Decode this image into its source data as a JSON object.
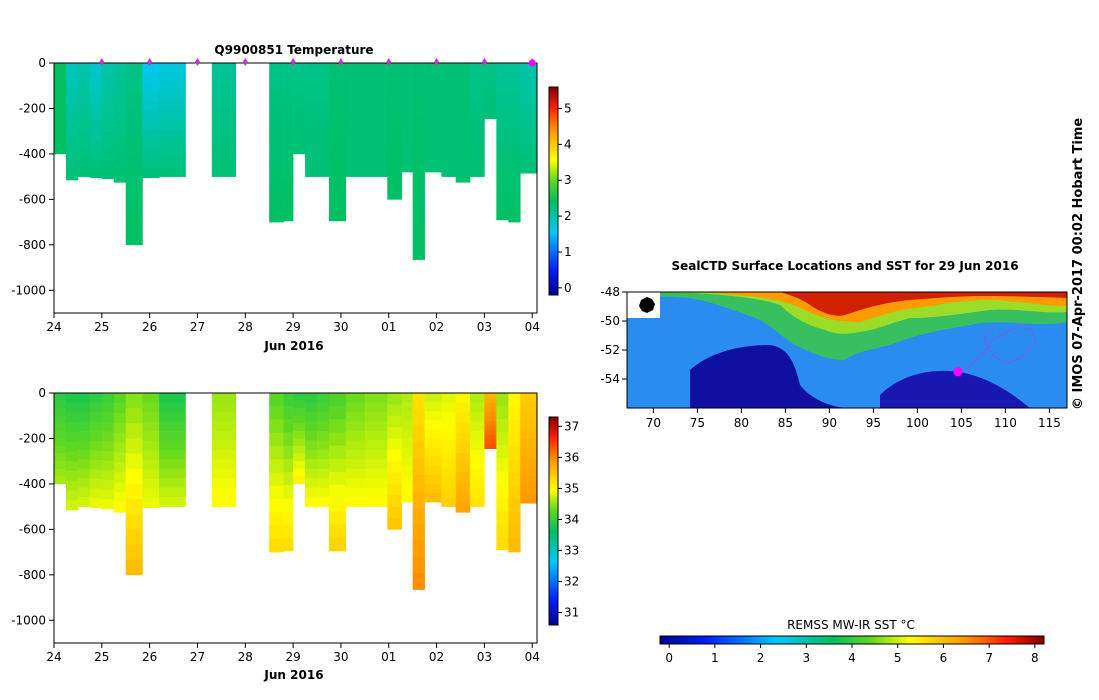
{
  "credit": "© IMOS 07-Apr-2017 00:02 Hobart Time",
  "colors": {
    "tag_marker": "#cc33cc",
    "seal_track": "#cc33cc",
    "current_position": "#ff00ff",
    "axis": "#000000"
  },
  "chart_data": [
    {
      "type": "heatmap",
      "title": "Q9900851  Temperature",
      "xlabel": "Jun 2016",
      "ylabel": "",
      "x_ticks": [
        "24",
        "25",
        "26",
        "27",
        "28",
        "29",
        "30",
        "01",
        "02",
        "03",
        "04"
      ],
      "y_ticks": [
        "0",
        "-200",
        "-400",
        "-600",
        "-800",
        "-1000"
      ],
      "ylim": [
        -1100,
        0
      ],
      "colorbar_ticks": [
        "0",
        "1",
        "2",
        "3",
        "4",
        "5"
      ],
      "colorbar_range": [
        -0.2,
        5.6
      ],
      "x_unit": "days since 24 Jun 2016",
      "profile_days": [
        1.0,
        2.0,
        3.0,
        4.0,
        5.0,
        6.0,
        7.0,
        8.0,
        9.0,
        10.0
      ],
      "profiles": [
        {
          "x0": 0.0,
          "x1": 0.25,
          "depth": -400,
          "surf": 2.4,
          "deep": 2.4
        },
        {
          "x0": 0.25,
          "x1": 0.5,
          "depth": -515,
          "surf": 1.9,
          "deep": 2.3
        },
        {
          "x0": 0.5,
          "x1": 0.75,
          "depth": -500,
          "surf": 2.0,
          "deep": 2.3
        },
        {
          "x0": 0.75,
          "x1": 1.0,
          "depth": -505,
          "surf": 1.8,
          "deep": 2.3
        },
        {
          "x0": 1.0,
          "x1": 1.25,
          "depth": -510,
          "surf": 2.0,
          "deep": 2.3
        },
        {
          "x0": 1.25,
          "x1": 1.5,
          "depth": -525,
          "surf": 2.1,
          "deep": 2.3
        },
        {
          "x0": 1.5,
          "x1": 1.85,
          "depth": -800,
          "surf": 2.2,
          "deep": 2.4
        },
        {
          "x0": 1.85,
          "x1": 2.2,
          "depth": -505,
          "surf": 1.6,
          "deep": 2.3
        },
        {
          "x0": 2.2,
          "x1": 2.75,
          "depth": -500,
          "surf": 1.7,
          "deep": 2.3
        },
        {
          "x0": 3.3,
          "x1": 3.8,
          "depth": -500,
          "surf": 2.1,
          "deep": 2.3
        },
        {
          "x0": 4.5,
          "x1": 4.8,
          "depth": -700,
          "surf": 2.2,
          "deep": 2.4
        },
        {
          "x0": 4.8,
          "x1": 5.0,
          "depth": -695,
          "surf": 2.2,
          "deep": 2.4
        },
        {
          "x0": 5.0,
          "x1": 5.25,
          "depth": -400,
          "surf": 2.2,
          "deep": 2.3
        },
        {
          "x0": 5.25,
          "x1": 5.5,
          "depth": -500,
          "surf": 2.2,
          "deep": 2.3
        },
        {
          "x0": 5.5,
          "x1": 5.75,
          "depth": -500,
          "surf": 2.2,
          "deep": 2.3
        },
        {
          "x0": 5.75,
          "x1": 6.1,
          "depth": -695,
          "surf": 2.3,
          "deep": 2.4
        },
        {
          "x0": 6.1,
          "x1": 6.5,
          "depth": -500,
          "surf": 2.3,
          "deep": 2.3
        },
        {
          "x0": 6.5,
          "x1": 6.97,
          "depth": -500,
          "surf": 2.3,
          "deep": 2.3
        },
        {
          "x0": 6.97,
          "x1": 7.27,
          "depth": -600,
          "surf": 2.3,
          "deep": 2.4
        },
        {
          "x0": 7.27,
          "x1": 7.5,
          "depth": -480,
          "surf": 2.3,
          "deep": 2.3
        },
        {
          "x0": 7.5,
          "x1": 7.75,
          "depth": -865,
          "surf": 2.3,
          "deep": 2.4
        },
        {
          "x0": 7.75,
          "x1": 8.1,
          "depth": -480,
          "surf": 2.3,
          "deep": 2.3
        },
        {
          "x0": 8.1,
          "x1": 8.4,
          "depth": -500,
          "surf": 2.3,
          "deep": 2.3
        },
        {
          "x0": 8.4,
          "x1": 8.7,
          "depth": -525,
          "surf": 2.3,
          "deep": 2.3
        },
        {
          "x0": 8.7,
          "x1": 9.0,
          "depth": -500,
          "surf": 2.2,
          "deep": 2.3
        },
        {
          "x0": 9.0,
          "x1": 9.25,
          "depth": -245,
          "surf": 2.2,
          "deep": 2.3
        },
        {
          "x0": 9.25,
          "x1": 9.5,
          "depth": -690,
          "surf": 2.1,
          "deep": 2.4
        },
        {
          "x0": 9.5,
          "x1": 9.75,
          "depth": -700,
          "surf": 2.1,
          "deep": 2.4
        },
        {
          "x0": 9.75,
          "x1": 10.1,
          "depth": -485,
          "surf": 2.0,
          "deep": 2.3
        }
      ]
    },
    {
      "type": "heatmap",
      "title": "",
      "xlabel": "Jun 2016",
      "ylabel": "",
      "x_ticks": [
        "24",
        "25",
        "26",
        "27",
        "28",
        "29",
        "30",
        "01",
        "02",
        "03",
        "04"
      ],
      "y_ticks": [
        "0",
        "-200",
        "-400",
        "-600",
        "-800",
        "-1000"
      ],
      "ylim": [
        -1100,
        0
      ],
      "colorbar_ticks": [
        "31",
        "32",
        "33",
        "34",
        "35",
        "36",
        "37"
      ],
      "colorbar_range": [
        30.6,
        37.3
      ],
      "x_unit": "days since 24 Jun 2016",
      "profiles": [
        {
          "x0": 0.0,
          "x1": 0.25,
          "depth": -400,
          "surf": 33.9,
          "deep": 34.6
        },
        {
          "x0": 0.25,
          "x1": 0.5,
          "depth": -515,
          "surf": 33.8,
          "deep": 34.8
        },
        {
          "x0": 0.5,
          "x1": 0.75,
          "depth": -500,
          "surf": 33.8,
          "deep": 34.8
        },
        {
          "x0": 0.75,
          "x1": 1.0,
          "depth": -505,
          "surf": 33.9,
          "deep": 34.9
        },
        {
          "x0": 1.0,
          "x1": 1.25,
          "depth": -510,
          "surf": 34.0,
          "deep": 34.9
        },
        {
          "x0": 1.25,
          "x1": 1.5,
          "depth": -525,
          "surf": 34.2,
          "deep": 35.0
        },
        {
          "x0": 1.5,
          "x1": 1.85,
          "depth": -800,
          "surf": 34.4,
          "deep": 35.6
        },
        {
          "x0": 1.85,
          "x1": 2.2,
          "depth": -505,
          "surf": 34.3,
          "deep": 34.9
        },
        {
          "x0": 2.2,
          "x1": 2.75,
          "depth": -500,
          "surf": 33.8,
          "deep": 34.8
        },
        {
          "x0": 3.3,
          "x1": 3.8,
          "depth": -500,
          "surf": 34.5,
          "deep": 35.0
        },
        {
          "x0": 4.5,
          "x1": 4.8,
          "depth": -700,
          "surf": 34.2,
          "deep": 35.3
        },
        {
          "x0": 4.8,
          "x1": 5.0,
          "depth": -695,
          "surf": 34.0,
          "deep": 35.3
        },
        {
          "x0": 5.0,
          "x1": 5.25,
          "depth": -400,
          "surf": 33.9,
          "deep": 35.1
        },
        {
          "x0": 5.25,
          "x1": 5.5,
          "depth": -500,
          "surf": 33.9,
          "deep": 35.0
        },
        {
          "x0": 5.5,
          "x1": 5.75,
          "depth": -500,
          "surf": 34.0,
          "deep": 35.0
        },
        {
          "x0": 5.75,
          "x1": 6.1,
          "depth": -695,
          "surf": 34.1,
          "deep": 35.4
        },
        {
          "x0": 6.1,
          "x1": 6.5,
          "depth": -500,
          "surf": 34.3,
          "deep": 35.0
        },
        {
          "x0": 6.5,
          "x1": 6.97,
          "depth": -500,
          "surf": 34.4,
          "deep": 35.0
        },
        {
          "x0": 6.97,
          "x1": 7.27,
          "depth": -600,
          "surf": 34.5,
          "deep": 35.5
        },
        {
          "x0": 7.27,
          "x1": 7.5,
          "depth": -480,
          "surf": 34.6,
          "deep": 35.0
        },
        {
          "x0": 7.5,
          "x1": 7.75,
          "depth": -865,
          "surf": 35.2,
          "deep": 36.0
        },
        {
          "x0": 7.75,
          "x1": 8.1,
          "depth": -480,
          "surf": 34.7,
          "deep": 35.6
        },
        {
          "x0": 8.1,
          "x1": 8.4,
          "depth": -500,
          "surf": 34.8,
          "deep": 35.4
        },
        {
          "x0": 8.4,
          "x1": 8.7,
          "depth": -525,
          "surf": 35.0,
          "deep": 35.8
        },
        {
          "x0": 8.7,
          "x1": 9.0,
          "depth": -500,
          "surf": 34.6,
          "deep": 35.2
        },
        {
          "x0": 9.0,
          "x1": 9.25,
          "depth": -245,
          "surf": 35.6,
          "deep": 36.4
        },
        {
          "x0": 9.25,
          "x1": 9.5,
          "depth": -690,
          "surf": 34.5,
          "deep": 35.3
        },
        {
          "x0": 9.5,
          "x1": 9.75,
          "depth": -700,
          "surf": 35.0,
          "deep": 35.6
        },
        {
          "x0": 9.75,
          "x1": 10.1,
          "depth": -485,
          "surf": 35.4,
          "deep": 35.9
        }
      ]
    },
    {
      "type": "heatmap",
      "title": "SealCTD Surface Locations and SST for 29 Jun 2016",
      "xlabel": "",
      "ylabel": "",
      "x_ticks": [
        "70",
        "75",
        "80",
        "85",
        "90",
        "95",
        "100",
        "105",
        "110",
        "115"
      ],
      "y_ticks": [
        "-48",
        "-50",
        "-52",
        "-54"
      ],
      "xlim": [
        67,
        117
      ],
      "ylim": [
        -56,
        -48
      ],
      "colorbar_label": "REMSS MW-IR SST °C",
      "colorbar_ticks": [
        "0",
        "1",
        "2",
        "3",
        "4",
        "5",
        "6",
        "7",
        "8"
      ],
      "colorbar_range": [
        -0.2,
        8.2
      ],
      "current_position": {
        "lon": 104.6,
        "lat": -53.5
      },
      "track": [
        {
          "lon": 104.6,
          "lat": -53.5
        },
        {
          "lon": 106.0,
          "lat": -53.1
        },
        {
          "lon": 107.5,
          "lat": -52.3
        },
        {
          "lon": 108.5,
          "lat": -51.3
        },
        {
          "lon": 110.0,
          "lat": -50.8
        },
        {
          "lon": 111.5,
          "lat": -50.4
        },
        {
          "lon": 113.0,
          "lat": -50.6
        },
        {
          "lon": 113.4,
          "lat": -51.5
        },
        {
          "lon": 112.0,
          "lat": -52.4
        },
        {
          "lon": 110.5,
          "lat": -52.9
        },
        {
          "lon": 109.0,
          "lat": -52.6
        },
        {
          "lon": 108.0,
          "lat": -51.8
        },
        {
          "lon": 107.6,
          "lat": -51.0
        },
        {
          "lon": 108.8,
          "lat": -50.5
        }
      ]
    }
  ]
}
